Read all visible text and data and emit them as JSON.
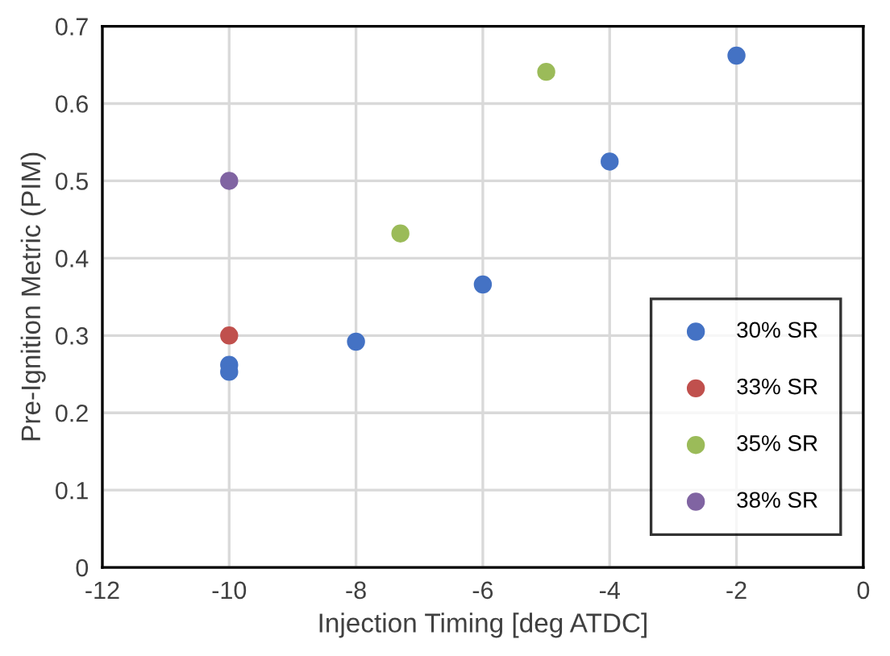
{
  "chart_data": {
    "type": "scatter",
    "xlabel": "Injection Timing [deg ATDC]",
    "ylabel": "Pre-Ignition Metric (PIM)",
    "xlim": [
      -12,
      0
    ],
    "xticks": [
      -12,
      -10,
      -8,
      -6,
      -4,
      -2,
      0
    ],
    "ylim": [
      0,
      0.7
    ],
    "yticks": [
      0,
      0.1,
      0.2,
      0.3,
      0.4,
      0.5,
      0.6,
      0.7
    ],
    "grid": true,
    "legend": "bottom right",
    "marker": "circle",
    "series": [
      {
        "name": "30% SR",
        "color": "#4472c4",
        "x": [
          -10,
          -10,
          -8,
          -6,
          -4,
          -2
        ],
        "values": [
          0.262,
          0.253,
          0.292,
          0.366,
          0.525,
          0.662
        ]
      },
      {
        "name": "33% SR",
        "color": "#c0504d",
        "x": [
          -10
        ],
        "values": [
          0.3
        ]
      },
      {
        "name": "35% SR",
        "color": "#9bbb59",
        "x": [
          -7.3,
          -5
        ],
        "values": [
          0.432,
          0.641
        ]
      },
      {
        "name": "38% SR",
        "color": "#8064a2",
        "x": [
          -10
        ],
        "values": [
          0.5
        ]
      }
    ]
  }
}
